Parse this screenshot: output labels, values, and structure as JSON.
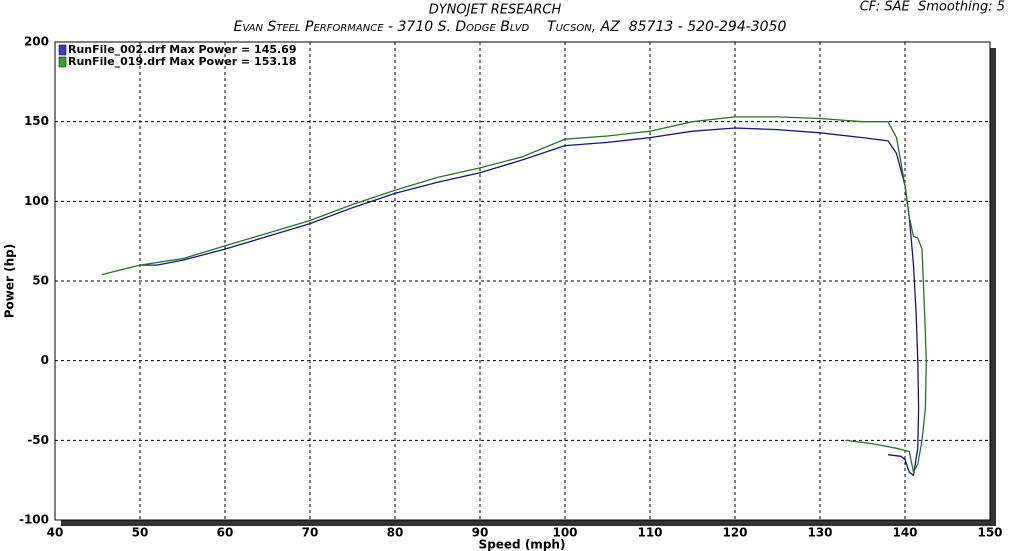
{
  "chart_data": {
    "type": "line",
    "title": "DYNOJET RESEARCH",
    "subtitle": "Evan Steel Performance - 3710 S. Dodge Blvd    Tucson, AZ  85713 - 520-294-3050",
    "annotation": "CF: SAE  Smoothing: 5",
    "x_label": "Speed (mph)",
    "y_label": "Power (hp)",
    "xlim": [
      40,
      150
    ],
    "ylim": [
      -100,
      200
    ],
    "xticks": [
      40,
      50,
      60,
      70,
      80,
      90,
      100,
      110,
      120,
      130,
      140,
      150
    ],
    "yticks": [
      -100,
      -50,
      0,
      50,
      100,
      150,
      200
    ],
    "grid": true,
    "legend": "top-left",
    "series": [
      {
        "name": "RunFile_002.drf Max Power = 145.69",
        "color": "#14148c",
        "legend_color": "#3a3ad0",
        "x": [
          50,
          52,
          55,
          60,
          65,
          70,
          75,
          80,
          85,
          90,
          95,
          100,
          105,
          110,
          115,
          120,
          125,
          130,
          135,
          138,
          139,
          140,
          140.5,
          141,
          141.3,
          141.5,
          141.6,
          141.5,
          141.2,
          141,
          140.5,
          140,
          139.5,
          138
        ],
        "values": [
          60,
          60,
          63,
          70,
          78,
          86,
          96,
          105,
          112,
          118,
          126,
          135,
          137,
          140,
          144,
          146,
          145,
          143,
          140,
          138,
          130,
          110,
          90,
          60,
          30,
          0,
          -30,
          -55,
          -65,
          -72,
          -70,
          -62,
          -60,
          -59
        ]
      },
      {
        "name": "RunFile_019.drf Max Power = 153.18",
        "color": "#1f7a1f",
        "legend_color": "#2fa52f",
        "x": [
          45.5,
          50,
          55,
          60,
          65,
          70,
          75,
          80,
          85,
          90,
          95,
          100,
          105,
          110,
          115,
          120,
          125,
          130,
          135,
          138,
          139,
          140,
          140.5,
          141,
          141.5,
          142,
          142.3,
          142.5,
          142.4,
          142,
          141.5,
          141,
          140.5,
          139,
          136,
          133
        ],
        "values": [
          54,
          60,
          64,
          72,
          80,
          88,
          98,
          107,
          115,
          121,
          128,
          139,
          141,
          144,
          150,
          153,
          153,
          152,
          150,
          150,
          140,
          110,
          90,
          78,
          77,
          70,
          30,
          0,
          -30,
          -50,
          -65,
          -70,
          -57,
          -55,
          -52,
          -50
        ]
      }
    ]
  }
}
